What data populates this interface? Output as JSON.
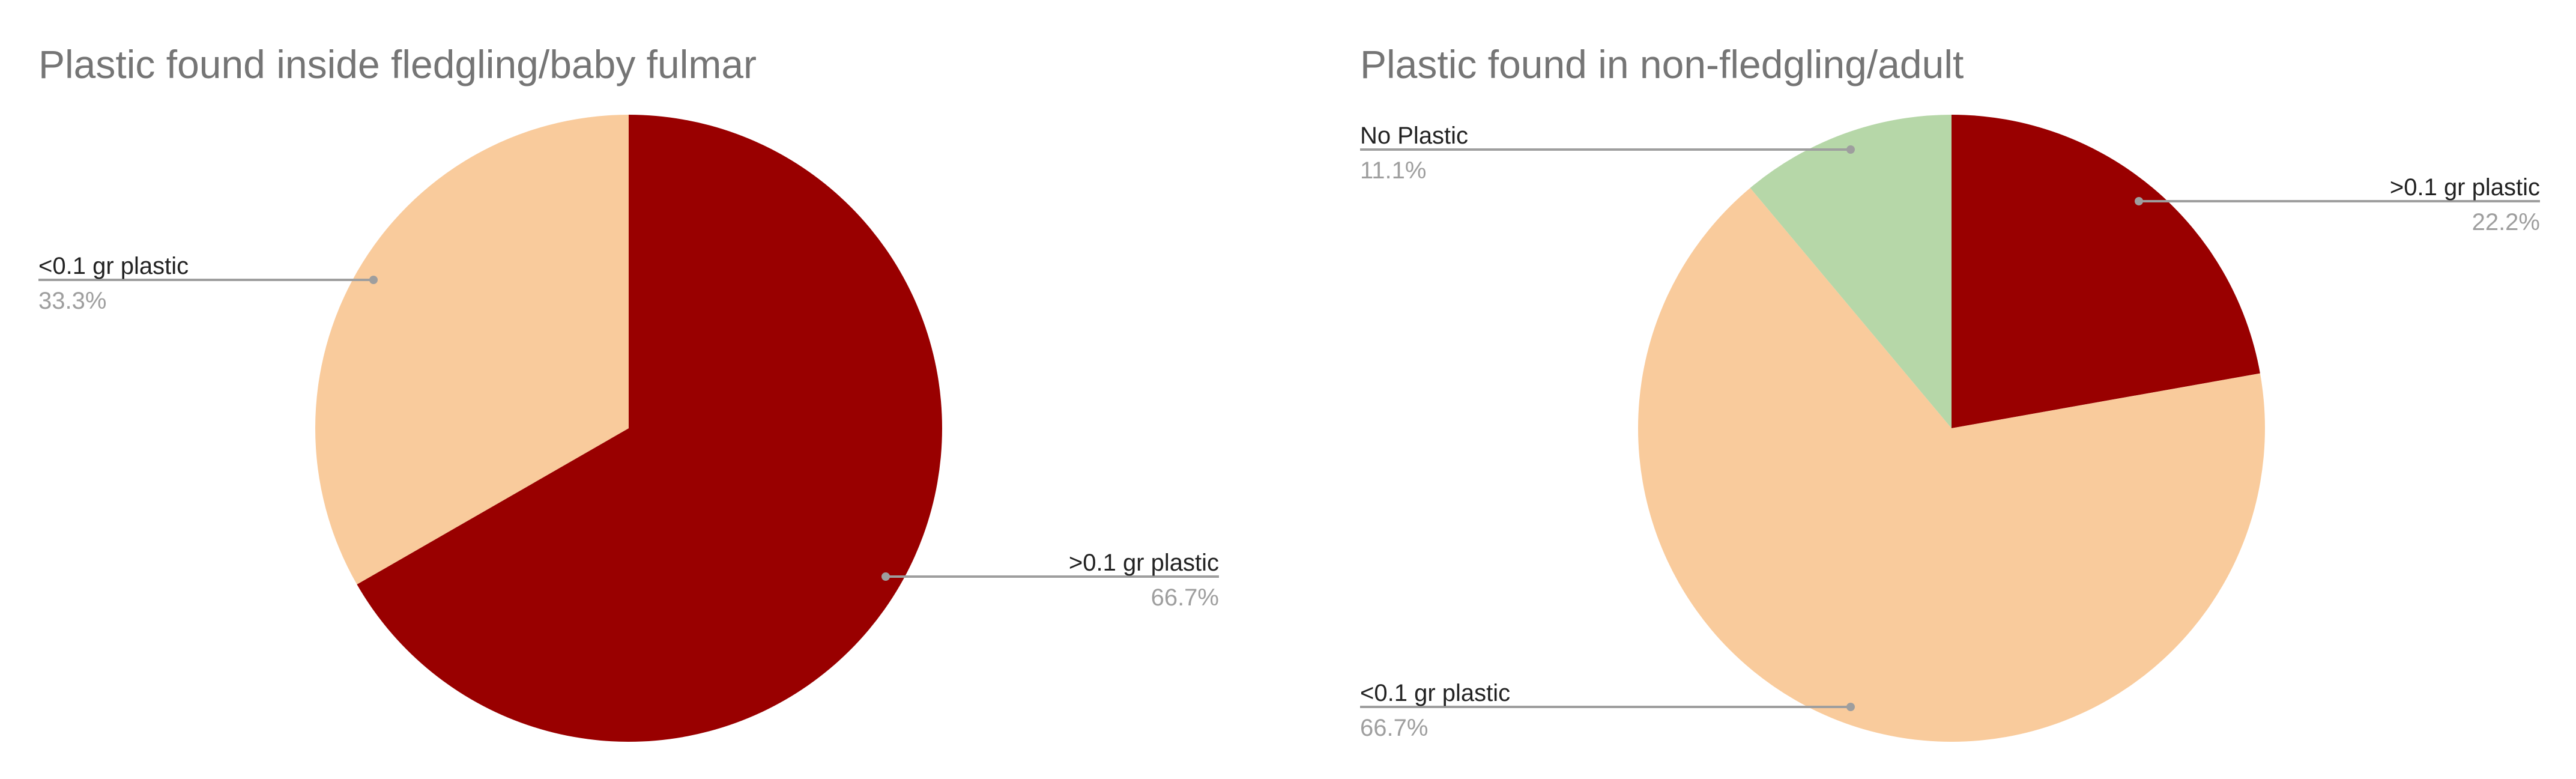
{
  "chart_data": [
    {
      "type": "pie",
      "title": "Plastic found inside fledgling/baby fulmar",
      "legend": "none",
      "slices": [
        {
          "label": ">0.1 gr plastic",
          "value": 66.7,
          "display": "66.7%",
          "color": "#990000"
        },
        {
          "label": "<0.1 gr plastic",
          "value": 33.3,
          "display": "33.3%",
          "color": "#f9cb9c"
        }
      ]
    },
    {
      "type": "pie",
      "title": "Plastic found in non-fledgling/adult",
      "legend": "none",
      "slices": [
        {
          "label": ">0.1 gr plastic",
          "value": 22.2,
          "display": "22.2%",
          "color": "#990000"
        },
        {
          "label": "<0.1 gr plastic",
          "value": 66.7,
          "display": "66.7%",
          "color": "#f9cb9c"
        },
        {
          "label": "No Plastic",
          "value": 11.1,
          "display": "11.1%",
          "color": "#b6d7a8"
        }
      ]
    }
  ]
}
